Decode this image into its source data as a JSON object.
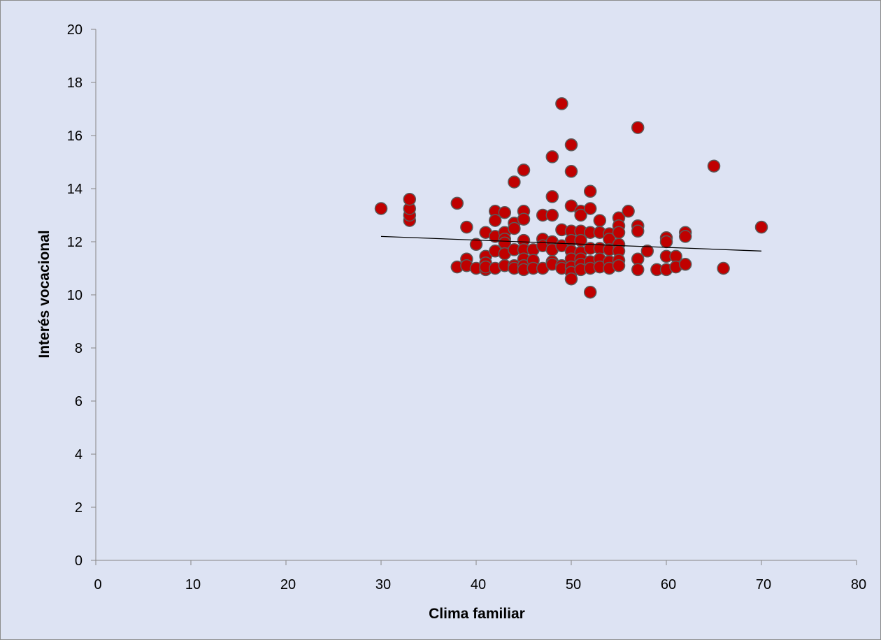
{
  "chart_data": {
    "type": "scatter",
    "xlabel": "Clima familiar",
    "ylabel": "Interés vocacional",
    "xlim": [
      0,
      80
    ],
    "ylim": [
      0,
      20
    ],
    "x_ticks": [
      0,
      10,
      20,
      30,
      40,
      50,
      60,
      70,
      80
    ],
    "y_ticks": [
      0,
      2,
      4,
      6,
      8,
      10,
      12,
      14,
      16,
      18,
      20
    ],
    "grid": false,
    "legend": "none",
    "marker_color": "#c00000",
    "trendline": {
      "x": [
        30,
        70
      ],
      "y": [
        12.2,
        11.65
      ],
      "color": "#000000"
    },
    "points": [
      [
        30,
        13.25
      ],
      [
        33,
        12.8
      ],
      [
        33,
        13.0
      ],
      [
        33,
        13.25
      ],
      [
        33,
        13.6
      ],
      [
        38,
        13.45
      ],
      [
        38,
        11.05
      ],
      [
        39,
        12.55
      ],
      [
        39,
        11.35
      ],
      [
        39,
        11.1
      ],
      [
        40,
        11.9
      ],
      [
        40,
        11.0
      ],
      [
        41,
        12.35
      ],
      [
        41,
        11.45
      ],
      [
        41,
        11.2
      ],
      [
        41,
        10.95
      ],
      [
        41,
        11.05
      ],
      [
        42,
        13.15
      ],
      [
        42,
        12.8
      ],
      [
        42,
        12.2
      ],
      [
        42,
        11.65
      ],
      [
        42,
        11.0
      ],
      [
        43,
        13.1
      ],
      [
        43,
        12.35
      ],
      [
        43,
        12.1
      ],
      [
        43,
        11.95
      ],
      [
        43,
        11.55
      ],
      [
        43,
        11.1
      ],
      [
        44,
        14.25
      ],
      [
        44,
        12.7
      ],
      [
        44,
        12.5
      ],
      [
        44,
        11.7
      ],
      [
        44,
        11.1
      ],
      [
        44,
        11.0
      ],
      [
        45,
        14.7
      ],
      [
        45,
        13.15
      ],
      [
        45,
        12.85
      ],
      [
        45,
        12.05
      ],
      [
        45,
        11.7
      ],
      [
        45,
        11.35
      ],
      [
        45,
        11.1
      ],
      [
        45,
        10.95
      ],
      [
        46,
        11.7
      ],
      [
        46,
        11.3
      ],
      [
        46,
        11.0
      ],
      [
        47,
        13.0
      ],
      [
        47,
        12.1
      ],
      [
        47,
        11.85
      ],
      [
        47,
        11.0
      ],
      [
        48,
        15.2
      ],
      [
        48,
        13.7
      ],
      [
        48,
        13.0
      ],
      [
        48,
        12.0
      ],
      [
        48,
        11.7
      ],
      [
        48,
        11.25
      ],
      [
        48,
        11.15
      ],
      [
        49,
        17.2
      ],
      [
        49,
        12.45
      ],
      [
        49,
        11.85
      ],
      [
        49,
        11.1
      ],
      [
        49,
        11.0
      ],
      [
        50,
        15.65
      ],
      [
        50,
        14.65
      ],
      [
        50,
        13.35
      ],
      [
        50,
        12.4
      ],
      [
        50,
        12.05
      ],
      [
        50,
        11.65
      ],
      [
        50,
        11.35
      ],
      [
        50,
        11.05
      ],
      [
        50,
        10.85
      ],
      [
        50,
        10.6
      ],
      [
        51,
        13.15
      ],
      [
        51,
        13.0
      ],
      [
        51,
        12.4
      ],
      [
        51,
        12.05
      ],
      [
        51,
        11.6
      ],
      [
        51,
        11.35
      ],
      [
        51,
        11.15
      ],
      [
        51,
        10.95
      ],
      [
        52,
        13.9
      ],
      [
        52,
        13.25
      ],
      [
        52,
        12.35
      ],
      [
        52,
        11.75
      ],
      [
        52,
        11.25
      ],
      [
        52,
        11.0
      ],
      [
        52,
        10.1
      ],
      [
        53,
        12.8
      ],
      [
        53,
        12.35
      ],
      [
        53,
        11.75
      ],
      [
        53,
        11.35
      ],
      [
        53,
        11.05
      ],
      [
        54,
        12.3
      ],
      [
        54,
        12.1
      ],
      [
        54,
        11.7
      ],
      [
        54,
        11.25
      ],
      [
        54,
        11.0
      ],
      [
        55,
        12.9
      ],
      [
        55,
        12.6
      ],
      [
        55,
        12.35
      ],
      [
        55,
        11.9
      ],
      [
        55,
        11.65
      ],
      [
        55,
        11.3
      ],
      [
        55,
        11.1
      ],
      [
        56,
        13.15
      ],
      [
        57,
        16.3
      ],
      [
        57,
        12.6
      ],
      [
        57,
        12.4
      ],
      [
        57,
        11.35
      ],
      [
        57,
        10.95
      ],
      [
        58,
        11.65
      ],
      [
        59,
        10.95
      ],
      [
        60,
        12.15
      ],
      [
        60,
        12.0
      ],
      [
        60,
        11.45
      ],
      [
        60,
        10.95
      ],
      [
        61,
        11.45
      ],
      [
        61,
        11.05
      ],
      [
        62,
        12.35
      ],
      [
        62,
        12.2
      ],
      [
        62,
        11.15
      ],
      [
        65,
        14.85
      ],
      [
        66,
        11.0
      ],
      [
        70,
        12.55
      ]
    ]
  }
}
